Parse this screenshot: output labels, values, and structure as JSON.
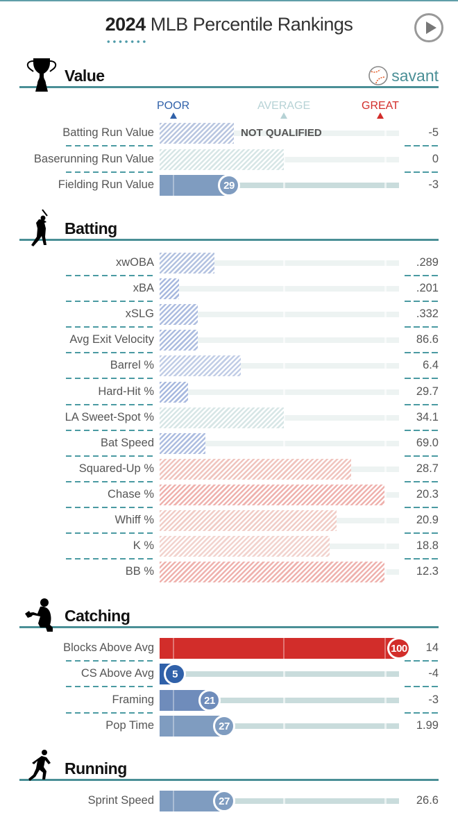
{
  "header": {
    "title_year": "2024",
    "title_rest": " MLB Percentile Rankings",
    "play_button_icon": "play-icon",
    "brand": "savant"
  },
  "scale": {
    "poor": "POOR",
    "average": "AVERAGE",
    "great": "GREAT",
    "colors": {
      "poor": "#3061a9",
      "average": "#b6d2d5",
      "great": "#d22d2a"
    }
  },
  "sections": [
    {
      "title": "Value",
      "icon": "trophy-icon",
      "rows": [
        {
          "label": "Batting Run Value",
          "value": "-5",
          "percentile": 31,
          "qualified": false,
          "note": "NOT QUALIFIED",
          "color": "#b9c6e0"
        },
        {
          "label": "Baserunning Run Value",
          "value": "0",
          "percentile": 52,
          "qualified": false,
          "color": "#d7e6e6"
        },
        {
          "label": "Fielding Run Value",
          "value": "-3",
          "percentile": 29,
          "qualified": true,
          "rank": "29",
          "color": "#7f9cc0"
        }
      ]
    },
    {
      "title": "Batting",
      "icon": "batter-icon",
      "rows": [
        {
          "label": "xwOBA",
          "value": ".289",
          "percentile": 23,
          "qualified": false,
          "color": "#b3c2e0"
        },
        {
          "label": "xBA",
          "value": ".201",
          "percentile": 8,
          "qualified": false,
          "color": "#a8b9df"
        },
        {
          "label": "xSLG",
          "value": ".332",
          "percentile": 16,
          "qualified": false,
          "color": "#adbde0"
        },
        {
          "label": "Avg Exit Velocity",
          "value": "86.6",
          "percentile": 16,
          "qualified": false,
          "color": "#adbde0"
        },
        {
          "label": "Barrel %",
          "value": "6.4",
          "percentile": 34,
          "qualified": false,
          "color": "#c1cde6"
        },
        {
          "label": "Hard-Hit %",
          "value": "29.7",
          "percentile": 12,
          "qualified": false,
          "color": "#a8b9df"
        },
        {
          "label": "LA Sweet-Spot %",
          "value": "34.1",
          "percentile": 52,
          "qualified": false,
          "color": "#d7e6e6"
        },
        {
          "label": "Bat Speed",
          "value": "69.0",
          "percentile": 19,
          "qualified": false,
          "color": "#adbde0"
        },
        {
          "label": "Squared-Up %",
          "value": "28.7",
          "percentile": 80,
          "qualified": false,
          "color": "#f0c4be"
        },
        {
          "label": "Chase %",
          "value": "20.3",
          "percentile": 94,
          "qualified": false,
          "color": "#efb2ae"
        },
        {
          "label": "Whiff %",
          "value": "20.9",
          "percentile": 74,
          "qualified": false,
          "color": "#f1cdc7"
        },
        {
          "label": "K %",
          "value": "18.8",
          "percentile": 71,
          "qualified": false,
          "color": "#f2d3ce"
        },
        {
          "label": "BB %",
          "value": "12.3",
          "percentile": 94,
          "qualified": false,
          "color": "#efb2ae"
        }
      ]
    },
    {
      "title": "Catching",
      "icon": "catcher-icon",
      "rows": [
        {
          "label": "Blocks Above Avg",
          "value": "14",
          "percentile": 100,
          "qualified": true,
          "rank": "100",
          "color": "#d22d2a"
        },
        {
          "label": "CS Above Avg",
          "value": "-4",
          "percentile": 5,
          "qualified": true,
          "rank": "5",
          "color": "#3061a9"
        },
        {
          "label": "Framing",
          "value": "-3",
          "percentile": 21,
          "qualified": true,
          "rank": "21",
          "color": "#6f8cbb"
        },
        {
          "label": "Pop Time",
          "value": "1.99",
          "percentile": 27,
          "qualified": true,
          "rank": "27",
          "color": "#7f9cc0"
        }
      ]
    },
    {
      "title": "Running",
      "icon": "runner-icon",
      "rows": [
        {
          "label": "Sprint Speed",
          "value": "26.6",
          "percentile": 27,
          "qualified": true,
          "rank": "27",
          "color": "#7f9cc0"
        }
      ]
    }
  ]
}
